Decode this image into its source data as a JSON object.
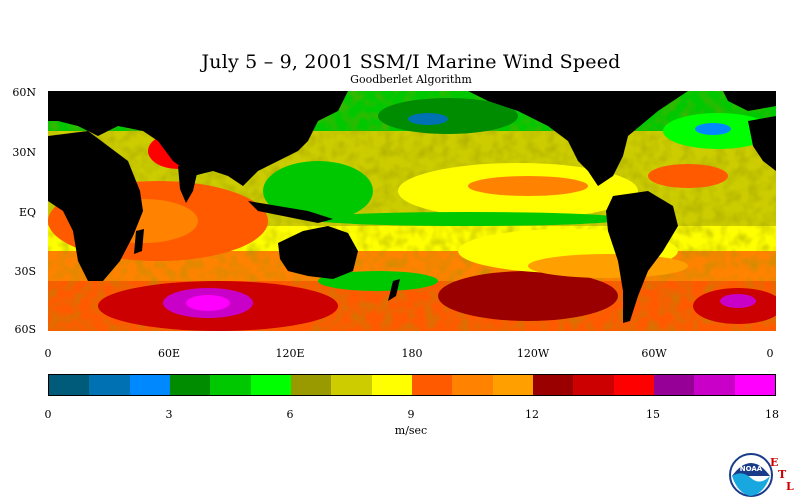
{
  "title": "July 5 – 9, 2001 SSM/I Marine Wind Speed",
  "subtitle": "Goodberlet Algorithm",
  "map": {
    "lat_labels": [
      "60N",
      "30N",
      "EQ",
      "30S",
      "60S"
    ],
    "lon_labels": [
      "0",
      "60E",
      "120E",
      "180",
      "120W",
      "60W",
      "0"
    ],
    "land_color": "#000000"
  },
  "colorbar": {
    "unit": "m/sec",
    "tick_labels": [
      "0",
      "3",
      "6",
      "9",
      "12",
      "15",
      "18"
    ],
    "colors": [
      "#005a7a",
      "#0072b4",
      "#0088ff",
      "#008c00",
      "#00c800",
      "#00ff00",
      "#999900",
      "#cccc00",
      "#ffff00",
      "#ff5a00",
      "#ff8200",
      "#ffa000",
      "#9a0000",
      "#cc0000",
      "#ff0000",
      "#960096",
      "#c800c8",
      "#ff00ff"
    ]
  },
  "logo": {
    "name": "noaa-logo",
    "text": "NOAA",
    "letters": [
      "E",
      "T",
      "L"
    ]
  }
}
